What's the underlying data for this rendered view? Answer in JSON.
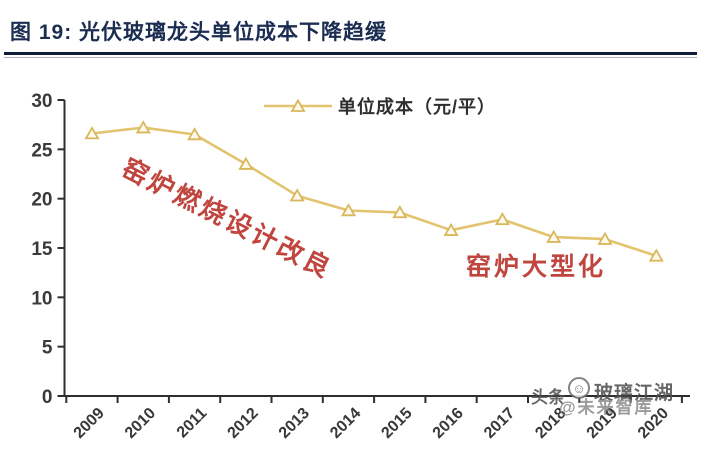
{
  "header": {
    "title": "图 19:  光伏玻璃龙头单位成本下降趋缓"
  },
  "chart_data": {
    "type": "line",
    "title": "光伏玻璃龙头单位成本下降趋缓",
    "legend": "单位成本（元/平）",
    "legend_position": "top-center",
    "categories": [
      "2009",
      "2010",
      "2011",
      "2012",
      "2013",
      "2014",
      "2015",
      "2016",
      "2017",
      "2018",
      "2019",
      "2020"
    ],
    "series": [
      {
        "name": "单位成本（元/平）",
        "values": [
          26.6,
          27.2,
          26.5,
          23.5,
          20.3,
          18.8,
          18.6,
          16.8,
          17.9,
          16.1,
          15.9,
          14.2
        ]
      }
    ],
    "xlabel": "",
    "ylabel": "",
    "ylim": [
      0,
      30
    ],
    "ytick_step": 5,
    "grid": false,
    "marker": "open-triangle",
    "colors": {
      "line": "#e2c36e",
      "marker_fill": "#fdf9ec",
      "marker_stroke": "#d9b75c",
      "axis": "#2e2e2e",
      "tick_label": "#3a3a3a"
    }
  },
  "annotations": [
    {
      "text": "窑炉燃烧设计改良",
      "color": "#c0453f",
      "rotation_deg": 27
    },
    {
      "text": "窑炉大型化",
      "color": "#c0453f",
      "rotation_deg": 0
    }
  ],
  "watermark": {
    "prefix": "头条",
    "avatar_icon": "smiley-avatar",
    "account": "玻璃江湖",
    "overlay": "@未来智库"
  }
}
